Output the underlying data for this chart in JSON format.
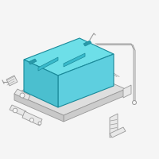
{
  "bg_color": "#f5f5f5",
  "battery_fill": "#5ecfdf",
  "battery_fill_left": "#4bbfcf",
  "battery_fill_top": "#6ddfe8",
  "battery_edge": "#1a8a9a",
  "parts_face": "#e8e8e8",
  "parts_edge": "#999999",
  "thin_line": "#aaaaaa",
  "fig_size": [
    2.0,
    2.0
  ],
  "dpi": 100
}
